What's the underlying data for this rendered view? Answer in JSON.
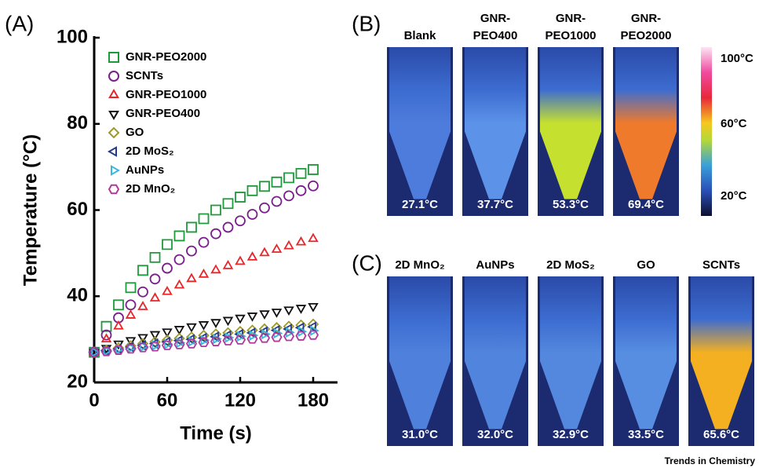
{
  "chart_data": {
    "type": "scatter",
    "panel_label": "(A)",
    "xlabel": "Time (s)",
    "ylabel": "Temperature (°C)",
    "xlim": [
      0,
      200
    ],
    "xticks": [
      0,
      60,
      120,
      180
    ],
    "ylim": [
      20,
      100
    ],
    "yticks": [
      20,
      40,
      60,
      80,
      100
    ],
    "legend": "upper left",
    "x": [
      0,
      10,
      20,
      30,
      40,
      50,
      60,
      70,
      80,
      90,
      100,
      110,
      120,
      130,
      140,
      150,
      160,
      170,
      180
    ],
    "series": [
      {
        "name": "GNR-PEO2000",
        "color": "#1e9a3c",
        "marker": "square",
        "values": [
          27,
          33,
          38,
          42,
          46,
          49,
          52,
          54,
          56,
          58,
          60,
          61.5,
          63,
          64.5,
          65.5,
          66.5,
          67.5,
          68.5,
          69.4
        ]
      },
      {
        "name": "SCNTs",
        "color": "#7a1f8c",
        "marker": "circle",
        "values": [
          27,
          31,
          35,
          38,
          41,
          44,
          46.5,
          48.5,
          50.5,
          52.5,
          54.5,
          56,
          57.5,
          59,
          60.5,
          62,
          63.3,
          64.5,
          65.6
        ]
      },
      {
        "name": "GNR-PEO1000",
        "color": "#e8262a",
        "marker": "triangle-up",
        "values": [
          27,
          30,
          33,
          35.5,
          37.5,
          39.5,
          41,
          42.5,
          44,
          45,
          46,
          47,
          48,
          49,
          50,
          50.8,
          51.6,
          52.5,
          53.3
        ]
      },
      {
        "name": "GNR-PEO400",
        "color": "#111111",
        "marker": "triangle-down",
        "values": [
          27,
          28,
          29,
          29.8,
          30.5,
          31.2,
          31.8,
          32.4,
          33,
          33.5,
          34,
          34.5,
          35,
          35.5,
          36,
          36.4,
          36.9,
          37.3,
          37.7
        ]
      },
      {
        "name": "GO",
        "color": "#9e9a2a",
        "marker": "diamond",
        "values": [
          27,
          27.5,
          28,
          28.5,
          29,
          29.4,
          29.8,
          30.2,
          30.5,
          30.9,
          31.2,
          31.5,
          31.8,
          32.1,
          32.4,
          32.7,
          33,
          33.3,
          33.5
        ]
      },
      {
        "name": "2D MoS₂",
        "color": "#233a8e",
        "marker": "triangle-left",
        "values": [
          27,
          27.4,
          27.8,
          28.2,
          28.6,
          29,
          29.4,
          29.7,
          30,
          30.3,
          30.6,
          30.9,
          31.2,
          31.5,
          31.8,
          32.1,
          32.4,
          32.7,
          32.9
        ]
      },
      {
        "name": "AuNPs",
        "color": "#3bb8d8",
        "marker": "triangle-right",
        "values": [
          27,
          27.3,
          27.7,
          28,
          28.3,
          28.6,
          28.9,
          29.2,
          29.5,
          29.8,
          30.1,
          30.4,
          30.7,
          30.9,
          31.2,
          31.4,
          31.6,
          31.8,
          32
        ]
      },
      {
        "name": "2D MnO₂",
        "color": "#b0389e",
        "marker": "hexagon",
        "values": [
          27,
          27.2,
          27.5,
          27.8,
          28.1,
          28.3,
          28.6,
          28.8,
          29,
          29.3,
          29.5,
          29.7,
          29.9,
          30.1,
          30.3,
          30.5,
          30.7,
          30.8,
          31
        ]
      }
    ]
  },
  "panel_b": {
    "label": "(B)",
    "colorbar": [
      "100°C",
      "60°C",
      "20°C"
    ],
    "tubes": [
      {
        "name": [
          "Blank"
        ],
        "temperature": "27.1°C",
        "color": "#4d7cdc"
      },
      {
        "name": [
          "GNR-",
          "PEO400"
        ],
        "temperature": "37.7°C",
        "color": "#5c92e8"
      },
      {
        "name": [
          "GNR-",
          "PEO1000"
        ],
        "temperature": "53.3°C",
        "color": "#c6e030"
      },
      {
        "name": [
          "GNR-",
          "PEO2000"
        ],
        "temperature": "69.4°C",
        "color": "#ef7a2c"
      }
    ]
  },
  "panel_c": {
    "label": "(C)",
    "tubes": [
      {
        "name": [
          "2D MnO₂"
        ],
        "temperature": "31.0°C",
        "color": "#4e80dc"
      },
      {
        "name": [
          "AuNPs"
        ],
        "temperature": "32.0°C",
        "color": "#5184dc"
      },
      {
        "name": [
          "2D MoS₂"
        ],
        "temperature": "32.9°C",
        "color": "#5388de"
      },
      {
        "name": [
          "GO"
        ],
        "temperature": "33.5°C",
        "color": "#578ee2"
      },
      {
        "name": [
          "SCNTs"
        ],
        "temperature": "65.6°C",
        "color": "#f4b020"
      }
    ]
  },
  "footer": "Trends in Chemistry"
}
